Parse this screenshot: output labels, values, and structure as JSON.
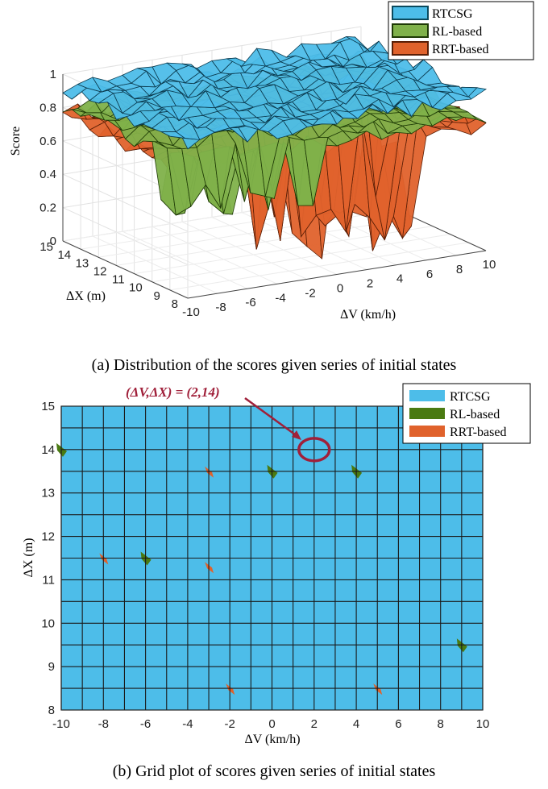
{
  "captions": {
    "a": "(a) Distribution of the scores given series of initial states",
    "b": "(b) Grid plot of scores given series of initial states"
  },
  "annotation": "(ΔV,ΔX) = (2,14)",
  "colors": {
    "rtcsg": "#4dbde9",
    "rl": "#7fb14a",
    "rrt": "#e0622c",
    "rl_dark": "#4a7a12",
    "annotation": "#a0203a"
  },
  "chart_data": [
    {
      "type": "surface",
      "title": "",
      "xlabel": "ΔV (km/h)",
      "ylabel": "ΔX (m)",
      "zlabel": "Score",
      "x_ticks": [
        "-10",
        "-8",
        "-6",
        "-4",
        "-2",
        "0",
        "2",
        "4",
        "6",
        "8",
        "10"
      ],
      "y_ticks": [
        "8",
        "9",
        "10",
        "11",
        "12",
        "13",
        "14",
        "15"
      ],
      "z_ticks": [
        "0",
        "0.2",
        "0.4",
        "0.6",
        "0.8",
        "1"
      ],
      "xlim": [
        -10,
        10
      ],
      "ylim": [
        8,
        15
      ],
      "zlim": [
        0,
        1
      ],
      "legend_position": "top-right",
      "series": [
        {
          "name": "RTCSG",
          "approx_score_range": [
            0.85,
            1.0
          ]
        },
        {
          "name": "RL-based",
          "approx_score_range": [
            0.35,
            0.9
          ]
        },
        {
          "name": "RRT-based",
          "approx_score_range": [
            0.0,
            0.85
          ]
        }
      ]
    },
    {
      "type": "heatmap",
      "title": "",
      "xlabel": "ΔV (km/h)",
      "ylabel": "ΔX (m)",
      "x_ticks": [
        "-10",
        "-8",
        "-6",
        "-4",
        "-2",
        "0",
        "2",
        "4",
        "6",
        "8",
        "10"
      ],
      "y_ticks": [
        "8",
        "9",
        "10",
        "11",
        "12",
        "13",
        "14",
        "15"
      ],
      "xlim": [
        -10,
        10
      ],
      "ylim": [
        8,
        15
      ],
      "grid": true,
      "legend_position": "top-right",
      "series": [
        {
          "name": "RTCSG",
          "region": "almost all grid cells"
        },
        {
          "name": "RL-based",
          "patches": [
            [
              -10,
              14
            ],
            [
              -6,
              11.5
            ],
            [
              0,
              13.5
            ],
            [
              4,
              13.5
            ],
            [
              9,
              9.5
            ]
          ]
        },
        {
          "name": "RRT-based",
          "patches": [
            [
              -3,
              13.5
            ],
            [
              -8,
              11.5
            ],
            [
              -3,
              11.3
            ],
            [
              -2,
              8.5
            ],
            [
              5,
              8.5
            ]
          ]
        }
      ],
      "highlight_point": [
        2,
        14
      ]
    }
  ]
}
